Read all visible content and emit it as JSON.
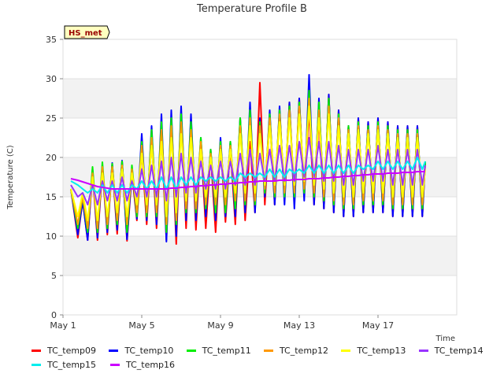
{
  "chart_data": {
    "type": "line",
    "title": "Temperature Profile B",
    "xlabel": "Time",
    "ylabel": "Temperature (C)",
    "annotation": "HS_met",
    "xlim": [
      0,
      20
    ],
    "ylim": [
      0,
      35
    ],
    "x_ticks": [
      0,
      4,
      8,
      12,
      16
    ],
    "x_tick_labels": [
      "May 1",
      "May 5",
      "May 9",
      "May 13",
      "May 17"
    ],
    "y_ticks": [
      0,
      5,
      10,
      15,
      20,
      25,
      30,
      35
    ],
    "y_tick_labels": [
      "0",
      "5",
      "10",
      "15",
      "20",
      "25",
      "30",
      "35"
    ],
    "grid": "horizontal bands",
    "legend_position": "bottom",
    "x_days": [
      0.4,
      0.75,
      1.0,
      1.25,
      1.5,
      1.75,
      2.0,
      2.25,
      2.5,
      2.75,
      3.0,
      3.25,
      3.5,
      3.75,
      4.0,
      4.25,
      4.5,
      4.75,
      5.0,
      5.25,
      5.5,
      5.75,
      6.0,
      6.25,
      6.5,
      6.75,
      7.0,
      7.25,
      7.5,
      7.75,
      8.0,
      8.25,
      8.5,
      8.75,
      9.0,
      9.25,
      9.5,
      9.75,
      10.0,
      10.25,
      10.5,
      10.75,
      11.0,
      11.25,
      11.5,
      11.75,
      12.0,
      12.25,
      12.5,
      12.75,
      13.0,
      13.25,
      13.5,
      13.75,
      14.0,
      14.25,
      14.5,
      14.75,
      15.0,
      15.25,
      15.5,
      15.75,
      16.0,
      16.25,
      16.5,
      16.75,
      17.0,
      17.25,
      17.5,
      17.75,
      18.0,
      18.25,
      18.4
    ],
    "series": [
      {
        "name": "TC_temp09",
        "color": "#ff0000",
        "values": [
          16.0,
          9.8,
          14.5,
          9.5,
          18.0,
          9.5,
          18.5,
          10.2,
          19.0,
          10.3,
          19.5,
          9.4,
          18.0,
          12.0,
          21.0,
          11.5,
          22.5,
          11.0,
          23.0,
          9.5,
          24.5,
          9.0,
          25.5,
          11.0,
          25.0,
          10.8,
          22.0,
          11.0,
          20.5,
          10.5,
          22.0,
          11.8,
          21.5,
          11.5,
          25.0,
          12.0,
          22.0,
          13.0,
          29.5,
          14.0,
          25.0,
          14.0,
          26.0,
          14.5,
          27.0,
          14.5,
          27.5,
          15.0,
          26.0,
          14.0,
          25.0,
          13.5,
          28.0,
          13.0,
          26.0,
          12.5,
          24.0,
          12.5,
          25.0,
          13.0,
          24.5,
          13.0,
          25.0,
          13.0,
          24.5,
          12.5,
          24.0,
          12.5,
          24.0,
          12.5,
          24.0,
          12.5,
          19.5
        ]
      },
      {
        "name": "TC_temp10",
        "color": "#0000ff",
        "values": [
          16.0,
          10.2,
          14.5,
          9.5,
          18.5,
          9.8,
          19.0,
          10.5,
          19.3,
          10.8,
          19.6,
          9.6,
          18.5,
          12.2,
          23.0,
          12.0,
          24.0,
          11.5,
          25.5,
          9.3,
          26.0,
          10.0,
          26.5,
          12.0,
          25.5,
          12.0,
          22.5,
          12.5,
          21.0,
          12.0,
          22.5,
          12.5,
          22.0,
          12.5,
          25.0,
          13.0,
          27.0,
          13.0,
          25.0,
          15.0,
          26.0,
          14.0,
          26.5,
          14.0,
          27.0,
          13.5,
          27.5,
          14.5,
          30.5,
          14.0,
          27.5,
          13.5,
          28.0,
          13.0,
          26.0,
          12.5,
          24.0,
          12.5,
          25.0,
          13.0,
          24.5,
          13.0,
          25.0,
          13.0,
          24.5,
          12.5,
          24.0,
          12.5,
          24.0,
          12.5,
          24.0,
          12.5,
          19.5
        ]
      },
      {
        "name": "TC_temp11",
        "color": "#00ee00",
        "values": [
          16.0,
          11.0,
          15.0,
          10.5,
          18.8,
          10.5,
          19.4,
          11.0,
          19.2,
          11.5,
          19.5,
          10.5,
          19.0,
          12.5,
          22.0,
          12.5,
          23.5,
          12.5,
          24.5,
          10.5,
          25.0,
          11.5,
          25.5,
          13.0,
          24.5,
          13.0,
          22.5,
          13.5,
          21.0,
          13.0,
          22.0,
          13.0,
          22.0,
          13.5,
          25.0,
          14.0,
          26.0,
          14.0,
          24.5,
          15.5,
          25.5,
          15.0,
          26.0,
          15.0,
          26.5,
          15.0,
          27.0,
          15.5,
          28.5,
          15.0,
          27.0,
          14.5,
          27.5,
          14.0,
          25.5,
          13.5,
          24.0,
          13.5,
          24.5,
          14.0,
          24.0,
          14.0,
          24.5,
          14.0,
          24.0,
          13.5,
          23.5,
          13.5,
          23.5,
          13.5,
          23.5,
          13.5,
          19.5
        ]
      },
      {
        "name": "TC_temp12",
        "color": "#ff9900",
        "values": [
          16.0,
          11.5,
          15.0,
          11.0,
          18.0,
          11.0,
          18.8,
          11.5,
          18.8,
          12.0,
          19.0,
          11.5,
          18.5,
          13.0,
          21.5,
          13.0,
          22.5,
          13.0,
          23.5,
          11.5,
          24.0,
          12.0,
          24.5,
          13.5,
          23.5,
          13.5,
          22.0,
          14.0,
          20.5,
          14.0,
          21.5,
          14.0,
          21.5,
          14.5,
          24.0,
          14.5,
          25.0,
          14.5,
          24.0,
          16.0,
          25.0,
          15.5,
          25.5,
          15.5,
          26.0,
          15.5,
          26.5,
          16.0,
          27.5,
          15.5,
          26.0,
          15.0,
          26.5,
          14.5,
          25.0,
          14.0,
          23.5,
          14.0,
          24.0,
          14.5,
          23.5,
          14.5,
          24.0,
          14.5,
          23.5,
          14.0,
          23.0,
          14.0,
          23.0,
          14.0,
          23.0,
          14.0,
          19.0
        ]
      },
      {
        "name": "TC_temp13",
        "color": "#ffff00",
        "values": [
          16.0,
          12.5,
          15.5,
          12.0,
          17.5,
          12.0,
          18.0,
          12.5,
          18.0,
          13.0,
          18.5,
          12.5,
          18.0,
          14.0,
          20.5,
          14.0,
          21.5,
          14.0,
          22.0,
          12.5,
          22.5,
          13.0,
          23.0,
          14.5,
          22.5,
          14.5,
          21.0,
          15.0,
          20.0,
          15.0,
          21.0,
          15.0,
          21.0,
          15.5,
          23.0,
          15.5,
          24.0,
          15.5,
          23.0,
          16.5,
          24.0,
          16.5,
          24.5,
          16.5,
          25.0,
          16.5,
          25.5,
          17.0,
          26.5,
          16.5,
          25.0,
          16.0,
          25.5,
          15.5,
          24.0,
          15.0,
          23.0,
          15.0,
          23.5,
          15.5,
          23.0,
          15.5,
          23.5,
          15.5,
          23.0,
          15.0,
          22.5,
          15.0,
          22.5,
          15.0,
          22.5,
          15.0,
          18.5
        ]
      },
      {
        "name": "TC_temp14",
        "color": "#9933ff",
        "values": [
          16.5,
          15.0,
          15.5,
          14.0,
          16.5,
          14.0,
          17.0,
          14.5,
          17.0,
          14.5,
          17.5,
          14.5,
          17.0,
          15.0,
          18.5,
          15.0,
          19.0,
          15.0,
          19.5,
          14.5,
          20.0,
          15.0,
          20.5,
          15.5,
          20.0,
          15.5,
          19.5,
          16.0,
          19.0,
          16.0,
          19.5,
          16.0,
          19.5,
          16.5,
          20.5,
          16.5,
          21.0,
          16.5,
          20.5,
          17.0,
          21.0,
          17.0,
          21.5,
          17.0,
          21.5,
          17.0,
          22.0,
          17.5,
          22.5,
          17.5,
          22.0,
          17.0,
          22.0,
          17.0,
          21.5,
          16.5,
          21.0,
          16.5,
          21.0,
          17.0,
          21.0,
          17.0,
          21.5,
          17.0,
          21.0,
          16.5,
          21.0,
          16.5,
          21.0,
          16.5,
          21.0,
          16.5,
          19.0
        ]
      },
      {
        "name": "TC_temp15",
        "color": "#00eeee",
        "values": [
          17.0,
          16.5,
          16.0,
          15.5,
          16.0,
          15.5,
          16.5,
          15.5,
          16.5,
          15.5,
          16.5,
          15.5,
          16.5,
          16.0,
          17.0,
          16.0,
          17.0,
          16.0,
          17.5,
          16.0,
          17.5,
          16.0,
          17.5,
          16.5,
          17.5,
          16.5,
          17.5,
          17.0,
          17.5,
          17.0,
          17.5,
          17.0,
          17.5,
          17.0,
          18.0,
          17.5,
          18.0,
          17.5,
          18.0,
          17.5,
          18.5,
          17.5,
          18.5,
          17.5,
          18.5,
          18.0,
          18.5,
          18.0,
          19.0,
          18.0,
          19.0,
          18.0,
          19.0,
          18.0,
          19.0,
          18.0,
          19.0,
          18.0,
          19.0,
          18.5,
          19.0,
          18.5,
          19.5,
          18.5,
          19.5,
          18.5,
          19.5,
          18.5,
          19.5,
          18.5,
          20.0,
          18.5,
          19.5
        ]
      },
      {
        "name": "TC_temp16",
        "color": "#cc00ff",
        "values": [
          17.3,
          17.1,
          16.9,
          16.7,
          16.5,
          16.3,
          16.2,
          16.1,
          16.0,
          16.0,
          16.0,
          16.0,
          16.0,
          16.0,
          16.0,
          16.0,
          16.0,
          16.0,
          16.0,
          16.0,
          16.1,
          16.1,
          16.2,
          16.2,
          16.3,
          16.3,
          16.4,
          16.4,
          16.5,
          16.5,
          16.6,
          16.6,
          16.7,
          16.7,
          16.8,
          16.8,
          16.9,
          16.9,
          17.0,
          17.0,
          17.0,
          17.0,
          17.1,
          17.1,
          17.1,
          17.2,
          17.2,
          17.2,
          17.3,
          17.3,
          17.3,
          17.4,
          17.4,
          17.5,
          17.5,
          17.6,
          17.6,
          17.7,
          17.7,
          17.8,
          17.8,
          17.9,
          17.9,
          17.9,
          18.0,
          18.0,
          18.0,
          18.1,
          18.1,
          18.1,
          18.2,
          18.2,
          18.2
        ]
      }
    ]
  }
}
